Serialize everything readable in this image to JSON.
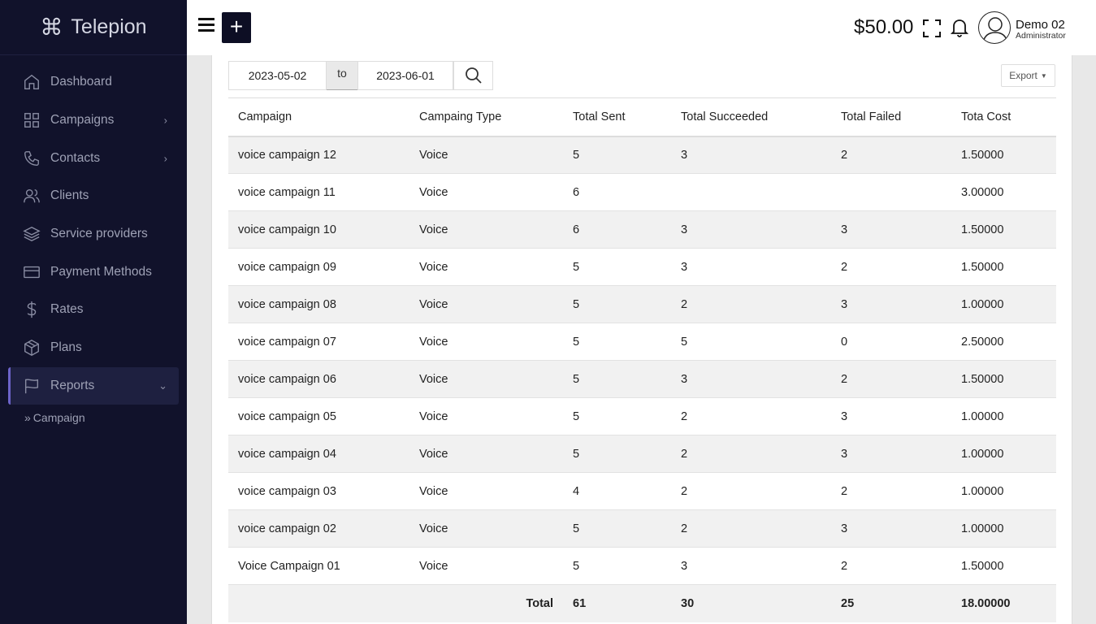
{
  "brand": {
    "name": "Telepion",
    "icon": "command-icon"
  },
  "sidebar": {
    "items": [
      {
        "label": "Dashboard",
        "icon": "home-icon"
      },
      {
        "label": "Campaigns",
        "icon": "grid-icon"
      },
      {
        "label": "Contacts",
        "icon": "phone-icon"
      },
      {
        "label": "Clients",
        "icon": "users-icon"
      },
      {
        "label": "Service providers",
        "icon": "layers-icon"
      },
      {
        "label": "Payment Methods",
        "icon": "credit-card-icon"
      },
      {
        "label": "Rates",
        "icon": "dollar-icon"
      },
      {
        "label": "Plans",
        "icon": "package-icon"
      },
      {
        "label": "Reports",
        "icon": "flag-icon"
      }
    ],
    "sub_item": {
      "label": "Campaign"
    }
  },
  "header": {
    "balance": "$50.00",
    "user_name": "Demo 02",
    "user_role": "Administrator"
  },
  "filter": {
    "date_from": "2023-05-02",
    "to_label": "to",
    "date_to": "2023-06-01",
    "export_label": "Export"
  },
  "table": {
    "headers": [
      "Campaign",
      "Campaing Type",
      "Total Sent",
      "Total Succeeded",
      "Total Failed",
      "Tota Cost"
    ],
    "rows": [
      [
        "voice campaign 12",
        "Voice",
        "5",
        "3",
        "2",
        "1.50000"
      ],
      [
        "voice campaign 11",
        "Voice",
        "6",
        "",
        "",
        "3.00000"
      ],
      [
        "voice campaign 10",
        "Voice",
        "6",
        "3",
        "3",
        "1.50000"
      ],
      [
        "voice campaign 09",
        "Voice",
        "5",
        "3",
        "2",
        "1.50000"
      ],
      [
        "voice campaign 08",
        "Voice",
        "5",
        "2",
        "3",
        "1.00000"
      ],
      [
        "voice campaign 07",
        "Voice",
        "5",
        "5",
        "0",
        "2.50000"
      ],
      [
        "voice campaign 06",
        "Voice",
        "5",
        "3",
        "2",
        "1.50000"
      ],
      [
        "voice campaign 05",
        "Voice",
        "5",
        "2",
        "3",
        "1.00000"
      ],
      [
        "voice campaign 04",
        "Voice",
        "5",
        "2",
        "3",
        "1.00000"
      ],
      [
        "voice campaign 03",
        "Voice",
        "4",
        "2",
        "2",
        "1.00000"
      ],
      [
        "voice campaign 02",
        "Voice",
        "5",
        "2",
        "3",
        "1.00000"
      ],
      [
        "Voice Campaign 01",
        "Voice",
        "5",
        "3",
        "2",
        "1.50000"
      ]
    ],
    "totals": {
      "label": "Total",
      "sent": "61",
      "succeeded": "30",
      "failed": "25",
      "cost": "18.00000"
    }
  }
}
